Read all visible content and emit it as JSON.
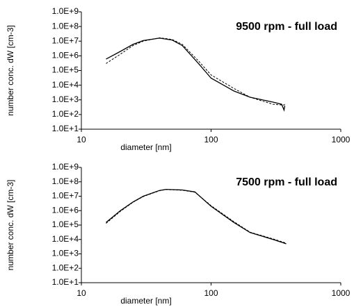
{
  "chart_data": [
    {
      "type": "line",
      "title": "9500 rpm - full load",
      "xlabel": "diameter [nm]",
      "ylabel": "number conc. dW [cm-3]",
      "xscale": "log",
      "yscale": "log",
      "xlim": [
        10,
        1000
      ],
      "ylim": [
        10,
        1000000000
      ],
      "xticks": [
        10,
        100,
        1000
      ],
      "yticks": [
        {
          "value": 10,
          "label": "1.0E+1"
        },
        {
          "value": 100,
          "label": "1.0E+2"
        },
        {
          "value": 1000,
          "label": "1.0E+3"
        },
        {
          "value": 10000,
          "label": "1.0E+4"
        },
        {
          "value": 100000,
          "label": "1.0E+5"
        },
        {
          "value": 1000000,
          "label": "1.0E+6"
        },
        {
          "value": 10000000,
          "label": "1.0E+7"
        },
        {
          "value": 100000000,
          "label": "1.0E+8"
        },
        {
          "value": 1000000000,
          "label": "1.0E+9"
        }
      ],
      "x": [
        15.5,
        20,
        25,
        30,
        40,
        50,
        60,
        80,
        100,
        150,
        200,
        300,
        350,
        365,
        370
      ],
      "series": [
        {
          "color": "#000000",
          "dashed": false,
          "values": [
            600000,
            2000000,
            6000000,
            11000000,
            16000000,
            12000000,
            5000000,
            300000,
            30000,
            4000,
            1500,
            700,
            500,
            200,
            400
          ]
        },
        {
          "color": "#000000",
          "dashed": true,
          "values": [
            300000,
            1300000,
            5000000,
            10000000,
            17000000,
            13000000,
            6000000,
            450000,
            50000,
            6000,
            1500,
            500,
            450,
            450,
            500
          ]
        }
      ]
    },
    {
      "type": "line",
      "title": "7500 rpm - full load",
      "xlabel": "diameter [nm]",
      "ylabel": "number conc. dW [cm-3]",
      "xscale": "log",
      "yscale": "log",
      "xlim": [
        10,
        1000
      ],
      "ylim": [
        10,
        1000000000
      ],
      "xticks": [
        10,
        100,
        1000
      ],
      "yticks": [
        {
          "value": 10,
          "label": "1.0E+1"
        },
        {
          "value": 100,
          "label": "1.0E+2"
        },
        {
          "value": 1000,
          "label": "1.0E+3"
        },
        {
          "value": 10000,
          "label": "1.0E+4"
        },
        {
          "value": 100000,
          "label": "1.0E+5"
        },
        {
          "value": 1000000,
          "label": "1.0E+6"
        },
        {
          "value": 10000000,
          "label": "1.0E+7"
        },
        {
          "value": 100000000,
          "label": "1.0E+8"
        },
        {
          "value": 1000000000,
          "label": "1.0E+9"
        }
      ],
      "x": [
        15.5,
        20,
        25,
        30,
        40,
        45,
        60,
        75,
        100,
        150,
        200,
        300,
        380
      ],
      "series": [
        {
          "color": "#000000",
          "dashed": false,
          "values": [
            150000,
            1000000,
            4000000,
            10000000,
            25000000,
            30000000,
            27000000,
            20000000,
            2000000,
            150000,
            30000,
            10000,
            5000
          ]
        },
        {
          "color": "#000000",
          "dashed": true,
          "values": [
            130000,
            900000,
            3800000,
            9500000,
            24000000,
            29000000,
            26000000,
            19000000,
            2200000,
            170000,
            32000,
            11000,
            5500
          ]
        }
      ]
    }
  ]
}
